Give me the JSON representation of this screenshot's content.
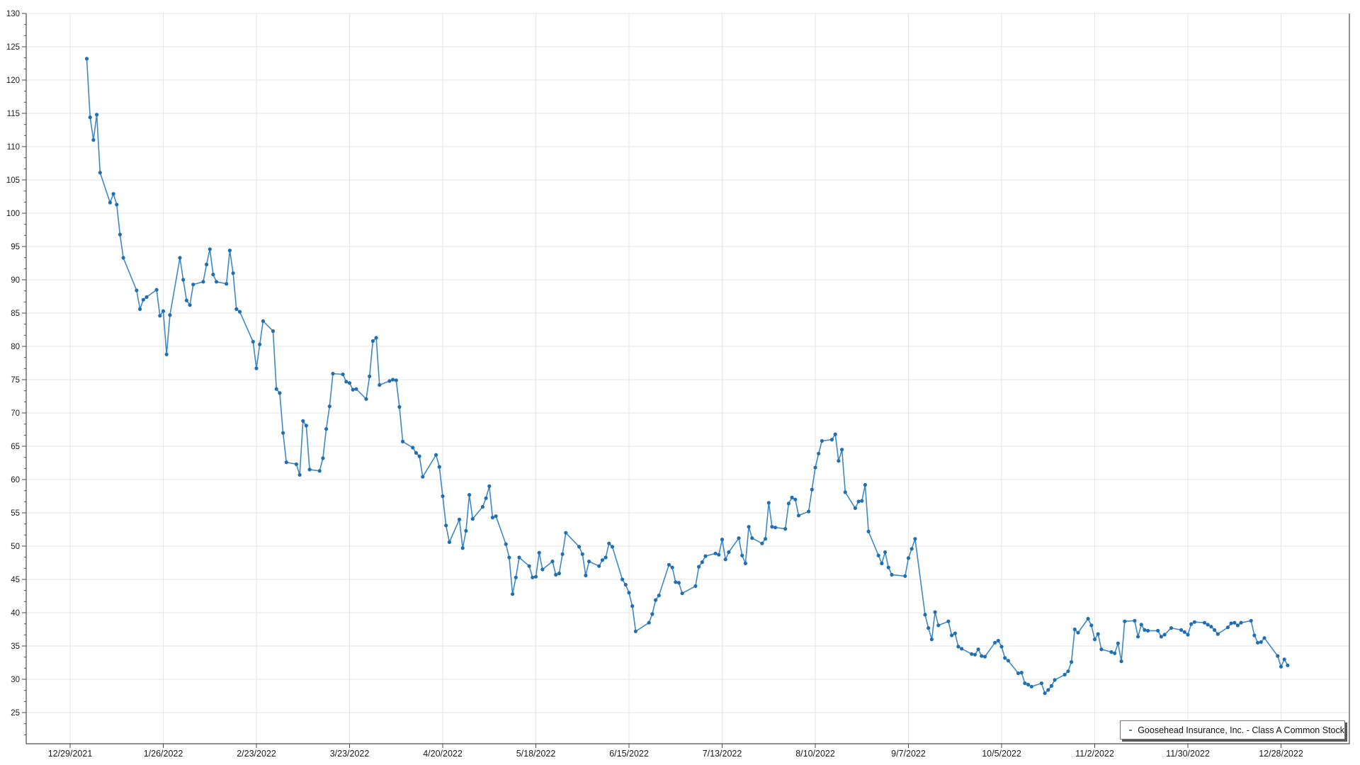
{
  "legend": {
    "series_label": "Goosehead Insurance, Inc. - Class A Common Stock",
    "position": "bottom-right"
  },
  "chart_data": {
    "type": "line",
    "title": "",
    "xlabel": "",
    "ylabel": "",
    "grid": true,
    "marker": "circle",
    "colors": {
      "line": "#3f88c5",
      "marker": "#1f6fb2",
      "grid": "#e5e5e5",
      "axis": "#4d4d4d",
      "label": "#1a1a1a",
      "legend_border": "#767676",
      "legend_shadow": "#595959",
      "background": "#ffffff"
    },
    "y_axis": {
      "min": 20.3,
      "max": 130,
      "tick_step": 5,
      "ticks": [
        25,
        30,
        35,
        40,
        45,
        50,
        55,
        60,
        65,
        70,
        75,
        80,
        85,
        90,
        95,
        100,
        105,
        110,
        115,
        120,
        125,
        130
      ]
    },
    "x_axis": {
      "tick_interval_days": 28,
      "tick_labels": [
        "12/29/2021",
        "1/26/2022",
        "2/23/2022",
        "3/23/2022",
        "4/20/2022",
        "5/18/2022",
        "6/15/2022",
        "7/13/2022",
        "8/10/2022",
        "9/7/2022",
        "10/5/2022",
        "11/2/2022",
        "11/30/2022",
        "12/28/2022"
      ]
    },
    "series": [
      {
        "name": "Goosehead Insurance, Inc. - Class A Common Stock",
        "points": [
          [
            "2022-01-03",
            123.2
          ],
          [
            "2022-01-04",
            114.4
          ],
          [
            "2022-01-05",
            111.0
          ],
          [
            "2022-01-06",
            114.8
          ],
          [
            "2022-01-07",
            106.1
          ],
          [
            "2022-01-10",
            101.6
          ],
          [
            "2022-01-11",
            102.9
          ],
          [
            "2022-01-12",
            101.3
          ],
          [
            "2022-01-13",
            96.8
          ],
          [
            "2022-01-14",
            93.3
          ],
          [
            "2022-01-18",
            88.4
          ],
          [
            "2022-01-19",
            85.6
          ],
          [
            "2022-01-20",
            87.0
          ],
          [
            "2022-01-21",
            87.4
          ],
          [
            "2022-01-24",
            88.5
          ],
          [
            "2022-01-25",
            84.6
          ],
          [
            "2022-01-26",
            85.3
          ],
          [
            "2022-01-27",
            78.8
          ],
          [
            "2022-01-28",
            84.7
          ],
          [
            "2022-01-31",
            93.3
          ],
          [
            "2022-02-01",
            90.0
          ],
          [
            "2022-02-02",
            86.9
          ],
          [
            "2022-02-03",
            86.2
          ],
          [
            "2022-02-04",
            89.3
          ],
          [
            "2022-02-07",
            89.7
          ],
          [
            "2022-02-08",
            92.3
          ],
          [
            "2022-02-09",
            94.6
          ],
          [
            "2022-02-10",
            90.8
          ],
          [
            "2022-02-11",
            89.7
          ],
          [
            "2022-02-14",
            89.4
          ],
          [
            "2022-02-15",
            94.4
          ],
          [
            "2022-02-16",
            91.0
          ],
          [
            "2022-02-17",
            85.6
          ],
          [
            "2022-02-18",
            85.2
          ],
          [
            "2022-02-22",
            80.7
          ],
          [
            "2022-02-23",
            76.7
          ],
          [
            "2022-02-24",
            80.3
          ],
          [
            "2022-02-25",
            83.8
          ],
          [
            "2022-02-28",
            82.3
          ],
          [
            "2022-03-01",
            73.6
          ],
          [
            "2022-03-02",
            73.0
          ],
          [
            "2022-03-03",
            67.0
          ],
          [
            "2022-03-04",
            62.6
          ],
          [
            "2022-03-07",
            62.3
          ],
          [
            "2022-03-08",
            60.7
          ],
          [
            "2022-03-09",
            68.8
          ],
          [
            "2022-03-10",
            68.1
          ],
          [
            "2022-03-11",
            61.5
          ],
          [
            "2022-03-14",
            61.3
          ],
          [
            "2022-03-15",
            63.2
          ],
          [
            "2022-03-16",
            67.6
          ],
          [
            "2022-03-17",
            71.0
          ],
          [
            "2022-03-18",
            75.9
          ],
          [
            "2022-03-21",
            75.8
          ],
          [
            "2022-03-22",
            74.7
          ],
          [
            "2022-03-23",
            74.5
          ],
          [
            "2022-03-24",
            73.5
          ],
          [
            "2022-03-25",
            73.6
          ],
          [
            "2022-03-28",
            72.1
          ],
          [
            "2022-03-29",
            75.5
          ],
          [
            "2022-03-30",
            80.8
          ],
          [
            "2022-03-31",
            81.3
          ],
          [
            "2022-04-01",
            74.2
          ],
          [
            "2022-04-04",
            74.8
          ],
          [
            "2022-04-05",
            75.0
          ],
          [
            "2022-04-06",
            74.9
          ],
          [
            "2022-04-07",
            70.9
          ],
          [
            "2022-04-08",
            65.7
          ],
          [
            "2022-04-11",
            64.8
          ],
          [
            "2022-04-12",
            64.0
          ],
          [
            "2022-04-13",
            63.5
          ],
          [
            "2022-04-14",
            60.4
          ],
          [
            "2022-04-18",
            63.7
          ],
          [
            "2022-04-19",
            61.9
          ],
          [
            "2022-04-20",
            57.5
          ],
          [
            "2022-04-21",
            53.1
          ],
          [
            "2022-04-22",
            50.6
          ],
          [
            "2022-04-25",
            54.0
          ],
          [
            "2022-04-26",
            49.7
          ],
          [
            "2022-04-27",
            52.3
          ],
          [
            "2022-04-28",
            57.7
          ],
          [
            "2022-04-29",
            54.1
          ],
          [
            "2022-05-02",
            55.9
          ],
          [
            "2022-05-03",
            57.2
          ],
          [
            "2022-05-04",
            59.0
          ],
          [
            "2022-05-05",
            54.3
          ],
          [
            "2022-05-06",
            54.5
          ],
          [
            "2022-05-09",
            50.3
          ],
          [
            "2022-05-10",
            48.3
          ],
          [
            "2022-05-11",
            42.8
          ],
          [
            "2022-05-12",
            45.3
          ],
          [
            "2022-05-13",
            48.3
          ],
          [
            "2022-05-16",
            47.0
          ],
          [
            "2022-05-17",
            45.3
          ],
          [
            "2022-05-18",
            45.4
          ],
          [
            "2022-05-19",
            49.0
          ],
          [
            "2022-05-20",
            46.5
          ],
          [
            "2022-05-23",
            47.7
          ],
          [
            "2022-05-24",
            45.7
          ],
          [
            "2022-05-25",
            45.9
          ],
          [
            "2022-05-26",
            48.8
          ],
          [
            "2022-05-27",
            52.0
          ],
          [
            "2022-05-31",
            49.9
          ],
          [
            "2022-06-01",
            48.8
          ],
          [
            "2022-06-02",
            45.6
          ],
          [
            "2022-06-03",
            47.7
          ],
          [
            "2022-06-06",
            47.0
          ],
          [
            "2022-06-07",
            47.9
          ],
          [
            "2022-06-08",
            48.3
          ],
          [
            "2022-06-09",
            50.4
          ],
          [
            "2022-06-10",
            49.9
          ],
          [
            "2022-06-13",
            45.0
          ],
          [
            "2022-06-14",
            44.2
          ],
          [
            "2022-06-15",
            43.0
          ],
          [
            "2022-06-16",
            41.0
          ],
          [
            "2022-06-17",
            37.2
          ],
          [
            "2022-06-21",
            38.5
          ],
          [
            "2022-06-22",
            39.8
          ],
          [
            "2022-06-23",
            41.9
          ],
          [
            "2022-06-24",
            42.6
          ],
          [
            "2022-06-27",
            47.2
          ],
          [
            "2022-06-28",
            46.8
          ],
          [
            "2022-06-29",
            44.6
          ],
          [
            "2022-06-30",
            44.5
          ],
          [
            "2022-07-01",
            42.9
          ],
          [
            "2022-07-05",
            44.0
          ],
          [
            "2022-07-06",
            46.9
          ],
          [
            "2022-07-07",
            47.6
          ],
          [
            "2022-07-08",
            48.5
          ],
          [
            "2022-07-11",
            48.9
          ],
          [
            "2022-07-12",
            48.7
          ],
          [
            "2022-07-13",
            51.0
          ],
          [
            "2022-07-14",
            48.0
          ],
          [
            "2022-07-15",
            49.1
          ],
          [
            "2022-07-18",
            51.2
          ],
          [
            "2022-07-19",
            48.6
          ],
          [
            "2022-07-20",
            47.4
          ],
          [
            "2022-07-21",
            52.9
          ],
          [
            "2022-07-22",
            51.2
          ],
          [
            "2022-07-25",
            50.4
          ],
          [
            "2022-07-26",
            51.1
          ],
          [
            "2022-07-27",
            56.5
          ],
          [
            "2022-07-28",
            52.9
          ],
          [
            "2022-07-29",
            52.8
          ],
          [
            "2022-08-01",
            52.6
          ],
          [
            "2022-08-02",
            56.4
          ],
          [
            "2022-08-03",
            57.3
          ],
          [
            "2022-08-04",
            57.0
          ],
          [
            "2022-08-05",
            54.6
          ],
          [
            "2022-08-08",
            55.2
          ],
          [
            "2022-08-09",
            58.5
          ],
          [
            "2022-08-10",
            61.8
          ],
          [
            "2022-08-11",
            63.9
          ],
          [
            "2022-08-12",
            65.8
          ],
          [
            "2022-08-15",
            66.0
          ],
          [
            "2022-08-16",
            66.8
          ],
          [
            "2022-08-17",
            62.8
          ],
          [
            "2022-08-18",
            64.5
          ],
          [
            "2022-08-19",
            58.1
          ],
          [
            "2022-08-22",
            55.7
          ],
          [
            "2022-08-23",
            56.7
          ],
          [
            "2022-08-24",
            56.8
          ],
          [
            "2022-08-25",
            59.2
          ],
          [
            "2022-08-26",
            52.2
          ],
          [
            "2022-08-29",
            48.6
          ],
          [
            "2022-08-30",
            47.4
          ],
          [
            "2022-08-31",
            49.1
          ],
          [
            "2022-09-01",
            46.8
          ],
          [
            "2022-09-02",
            45.7
          ],
          [
            "2022-09-06",
            45.5
          ],
          [
            "2022-09-07",
            48.2
          ],
          [
            "2022-09-08",
            49.6
          ],
          [
            "2022-09-09",
            51.1
          ],
          [
            "2022-09-12",
            39.7
          ],
          [
            "2022-09-13",
            37.7
          ],
          [
            "2022-09-14",
            36.0
          ],
          [
            "2022-09-15",
            40.1
          ],
          [
            "2022-09-16",
            38.1
          ],
          [
            "2022-09-19",
            38.7
          ],
          [
            "2022-09-20",
            36.6
          ],
          [
            "2022-09-21",
            36.9
          ],
          [
            "2022-09-22",
            34.9
          ],
          [
            "2022-09-23",
            34.6
          ],
          [
            "2022-09-26",
            33.8
          ],
          [
            "2022-09-27",
            33.7
          ],
          [
            "2022-09-28",
            34.5
          ],
          [
            "2022-09-29",
            33.5
          ],
          [
            "2022-09-30",
            33.4
          ],
          [
            "2022-10-03",
            35.5
          ],
          [
            "2022-10-04",
            35.8
          ],
          [
            "2022-10-05",
            34.9
          ],
          [
            "2022-10-06",
            33.2
          ],
          [
            "2022-10-07",
            32.8
          ],
          [
            "2022-10-10",
            30.9
          ],
          [
            "2022-10-11",
            31.0
          ],
          [
            "2022-10-12",
            29.4
          ],
          [
            "2022-10-13",
            29.2
          ],
          [
            "2022-10-14",
            28.9
          ],
          [
            "2022-10-17",
            29.4
          ],
          [
            "2022-10-18",
            27.9
          ],
          [
            "2022-10-19",
            28.4
          ],
          [
            "2022-10-20",
            29.0
          ],
          [
            "2022-10-21",
            29.9
          ],
          [
            "2022-10-24",
            30.7
          ],
          [
            "2022-10-25",
            31.2
          ],
          [
            "2022-10-26",
            32.6
          ],
          [
            "2022-10-27",
            37.5
          ],
          [
            "2022-10-28",
            37.0
          ],
          [
            "2022-10-31",
            39.1
          ],
          [
            "2022-11-01",
            38.1
          ],
          [
            "2022-11-02",
            36.0
          ],
          [
            "2022-11-03",
            36.8
          ],
          [
            "2022-11-04",
            34.5
          ],
          [
            "2022-11-07",
            34.1
          ],
          [
            "2022-11-08",
            33.9
          ],
          [
            "2022-11-09",
            35.4
          ],
          [
            "2022-11-10",
            32.7
          ],
          [
            "2022-11-11",
            38.7
          ],
          [
            "2022-11-14",
            38.8
          ],
          [
            "2022-11-15",
            36.4
          ],
          [
            "2022-11-16",
            38.2
          ],
          [
            "2022-11-17",
            37.4
          ],
          [
            "2022-11-18",
            37.3
          ],
          [
            "2022-11-21",
            37.3
          ],
          [
            "2022-11-22",
            36.4
          ],
          [
            "2022-11-23",
            36.7
          ],
          [
            "2022-11-25",
            37.7
          ],
          [
            "2022-11-28",
            37.4
          ],
          [
            "2022-11-29",
            37.1
          ],
          [
            "2022-11-30",
            36.7
          ],
          [
            "2022-12-01",
            38.3
          ],
          [
            "2022-12-02",
            38.6
          ],
          [
            "2022-12-05",
            38.5
          ],
          [
            "2022-12-06",
            38.2
          ],
          [
            "2022-12-07",
            37.9
          ],
          [
            "2022-12-08",
            37.4
          ],
          [
            "2022-12-09",
            36.8
          ],
          [
            "2022-12-12",
            37.8
          ],
          [
            "2022-12-13",
            38.4
          ],
          [
            "2022-12-14",
            38.5
          ],
          [
            "2022-12-15",
            38.1
          ],
          [
            "2022-12-16",
            38.5
          ],
          [
            "2022-12-19",
            38.8
          ],
          [
            "2022-12-20",
            36.6
          ],
          [
            "2022-12-21",
            35.5
          ],
          [
            "2022-12-22",
            35.6
          ],
          [
            "2022-12-23",
            36.2
          ],
          [
            "2022-12-27",
            33.5
          ],
          [
            "2022-12-28",
            31.9
          ],
          [
            "2022-12-29",
            33.0
          ],
          [
            "2022-12-30",
            32.1
          ]
        ]
      }
    ]
  }
}
